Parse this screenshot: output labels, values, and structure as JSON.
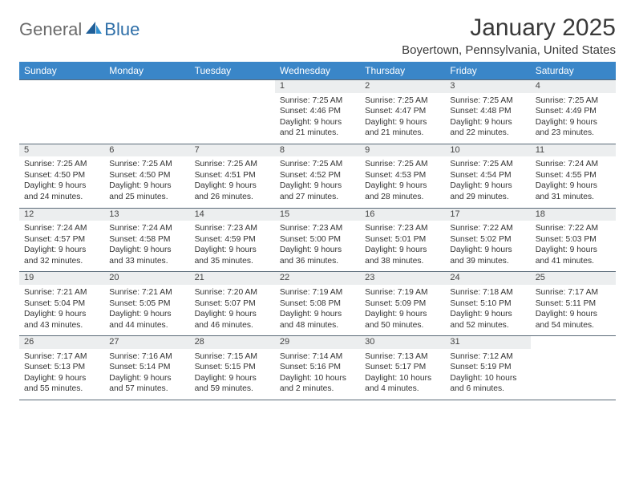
{
  "brand": {
    "part1": "General",
    "part2": "Blue"
  },
  "title": "January 2025",
  "location": "Boyertown, Pennsylvania, United States",
  "colors": {
    "header_bg": "#3a86c8",
    "header_text": "#ffffff",
    "daynum_bg": "#eceeef",
    "border": "#5a6a78",
    "logo_gray": "#6b6b6b",
    "logo_blue": "#2f6fa8",
    "body_text": "#333333"
  },
  "dayHeaders": [
    "Sunday",
    "Monday",
    "Tuesday",
    "Wednesday",
    "Thursday",
    "Friday",
    "Saturday"
  ],
  "weeks": [
    [
      null,
      null,
      null,
      {
        "n": "1",
        "sr": "7:25 AM",
        "ss": "4:46 PM",
        "dl": "9 hours and 21 minutes."
      },
      {
        "n": "2",
        "sr": "7:25 AM",
        "ss": "4:47 PM",
        "dl": "9 hours and 21 minutes."
      },
      {
        "n": "3",
        "sr": "7:25 AM",
        "ss": "4:48 PM",
        "dl": "9 hours and 22 minutes."
      },
      {
        "n": "4",
        "sr": "7:25 AM",
        "ss": "4:49 PM",
        "dl": "9 hours and 23 minutes."
      }
    ],
    [
      {
        "n": "5",
        "sr": "7:25 AM",
        "ss": "4:50 PM",
        "dl": "9 hours and 24 minutes."
      },
      {
        "n": "6",
        "sr": "7:25 AM",
        "ss": "4:50 PM",
        "dl": "9 hours and 25 minutes."
      },
      {
        "n": "7",
        "sr": "7:25 AM",
        "ss": "4:51 PM",
        "dl": "9 hours and 26 minutes."
      },
      {
        "n": "8",
        "sr": "7:25 AM",
        "ss": "4:52 PM",
        "dl": "9 hours and 27 minutes."
      },
      {
        "n": "9",
        "sr": "7:25 AM",
        "ss": "4:53 PM",
        "dl": "9 hours and 28 minutes."
      },
      {
        "n": "10",
        "sr": "7:25 AM",
        "ss": "4:54 PM",
        "dl": "9 hours and 29 minutes."
      },
      {
        "n": "11",
        "sr": "7:24 AM",
        "ss": "4:55 PM",
        "dl": "9 hours and 31 minutes."
      }
    ],
    [
      {
        "n": "12",
        "sr": "7:24 AM",
        "ss": "4:57 PM",
        "dl": "9 hours and 32 minutes."
      },
      {
        "n": "13",
        "sr": "7:24 AM",
        "ss": "4:58 PM",
        "dl": "9 hours and 33 minutes."
      },
      {
        "n": "14",
        "sr": "7:23 AM",
        "ss": "4:59 PM",
        "dl": "9 hours and 35 minutes."
      },
      {
        "n": "15",
        "sr": "7:23 AM",
        "ss": "5:00 PM",
        "dl": "9 hours and 36 minutes."
      },
      {
        "n": "16",
        "sr": "7:23 AM",
        "ss": "5:01 PM",
        "dl": "9 hours and 38 minutes."
      },
      {
        "n": "17",
        "sr": "7:22 AM",
        "ss": "5:02 PM",
        "dl": "9 hours and 39 minutes."
      },
      {
        "n": "18",
        "sr": "7:22 AM",
        "ss": "5:03 PM",
        "dl": "9 hours and 41 minutes."
      }
    ],
    [
      {
        "n": "19",
        "sr": "7:21 AM",
        "ss": "5:04 PM",
        "dl": "9 hours and 43 minutes."
      },
      {
        "n": "20",
        "sr": "7:21 AM",
        "ss": "5:05 PM",
        "dl": "9 hours and 44 minutes."
      },
      {
        "n": "21",
        "sr": "7:20 AM",
        "ss": "5:07 PM",
        "dl": "9 hours and 46 minutes."
      },
      {
        "n": "22",
        "sr": "7:19 AM",
        "ss": "5:08 PM",
        "dl": "9 hours and 48 minutes."
      },
      {
        "n": "23",
        "sr": "7:19 AM",
        "ss": "5:09 PM",
        "dl": "9 hours and 50 minutes."
      },
      {
        "n": "24",
        "sr": "7:18 AM",
        "ss": "5:10 PM",
        "dl": "9 hours and 52 minutes."
      },
      {
        "n": "25",
        "sr": "7:17 AM",
        "ss": "5:11 PM",
        "dl": "9 hours and 54 minutes."
      }
    ],
    [
      {
        "n": "26",
        "sr": "7:17 AM",
        "ss": "5:13 PM",
        "dl": "9 hours and 55 minutes."
      },
      {
        "n": "27",
        "sr": "7:16 AM",
        "ss": "5:14 PM",
        "dl": "9 hours and 57 minutes."
      },
      {
        "n": "28",
        "sr": "7:15 AM",
        "ss": "5:15 PM",
        "dl": "9 hours and 59 minutes."
      },
      {
        "n": "29",
        "sr": "7:14 AM",
        "ss": "5:16 PM",
        "dl": "10 hours and 2 minutes."
      },
      {
        "n": "30",
        "sr": "7:13 AM",
        "ss": "5:17 PM",
        "dl": "10 hours and 4 minutes."
      },
      {
        "n": "31",
        "sr": "7:12 AM",
        "ss": "5:19 PM",
        "dl": "10 hours and 6 minutes."
      },
      null
    ]
  ],
  "labels": {
    "sunrise": "Sunrise:",
    "sunset": "Sunset:",
    "daylight": "Daylight:"
  }
}
